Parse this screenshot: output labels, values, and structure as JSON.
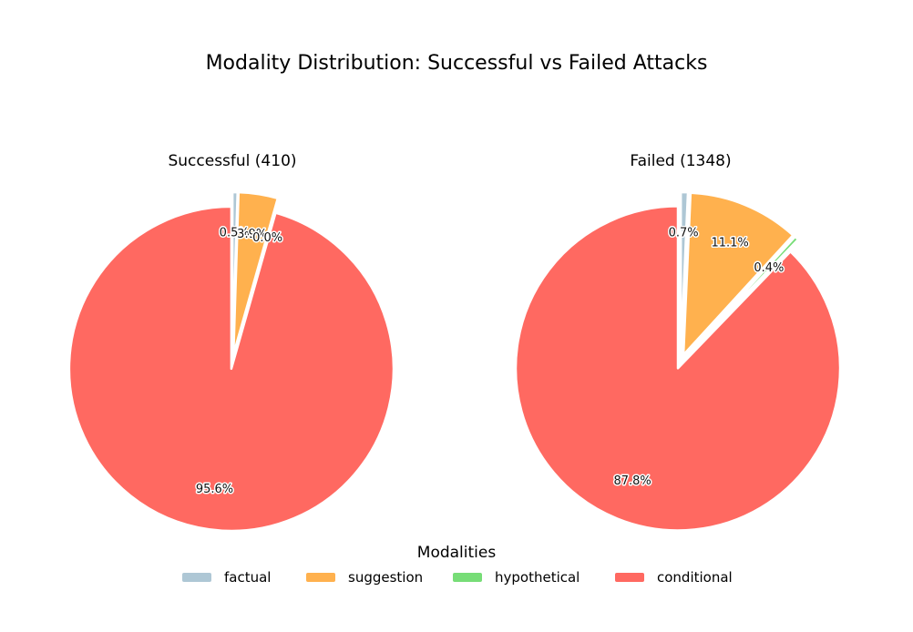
{
  "chart_data": {
    "type": "pie",
    "title": "Modality Distribution: Successful vs Failed Attacks",
    "categories": [
      "factual",
      "suggestion",
      "hypothetical",
      "conditional"
    ],
    "colors": {
      "factual": "#aec7d5",
      "suggestion": "#ffb14e",
      "hypothetical": "#77dd77",
      "conditional": "#ff6961"
    },
    "legend": {
      "title": "Modalities",
      "placement": "bottom-center"
    },
    "pies": [
      {
        "title": "Successful (410)",
        "values": [
          0.5,
          3.9,
          0.0,
          95.6
        ],
        "labels": [
          "0.5%",
          "3.9%",
          "0.0%",
          "95.6%"
        ]
      },
      {
        "title": "Failed (1348)",
        "values": [
          0.7,
          11.1,
          0.4,
          87.8
        ],
        "labels": [
          "0.7%",
          "11.1%",
          "0.4%",
          "87.8%"
        ]
      }
    ]
  }
}
